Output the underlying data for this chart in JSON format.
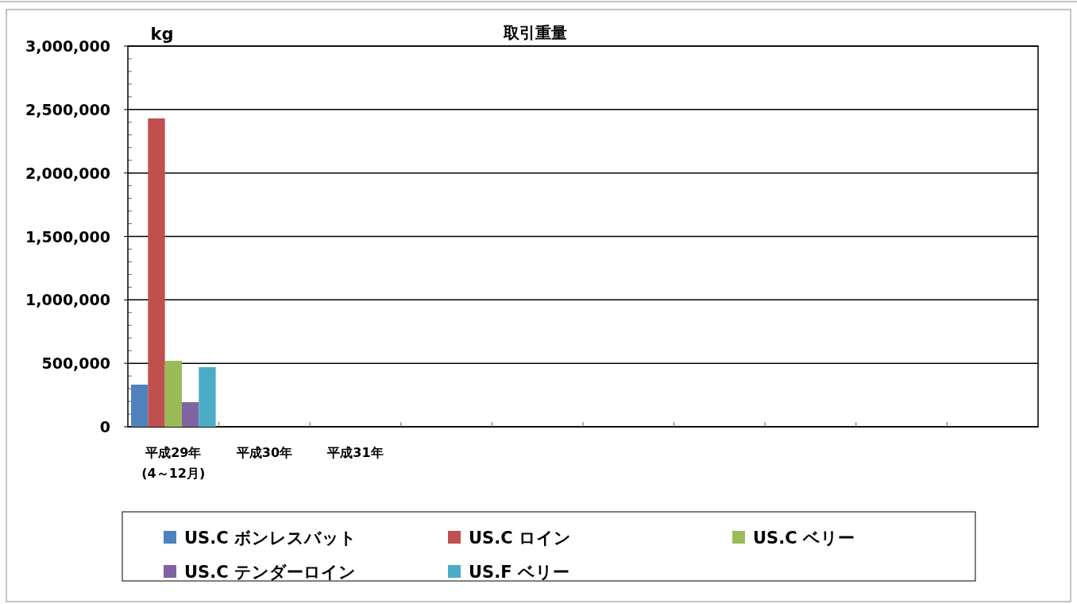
{
  "chart_data": {
    "type": "bar",
    "title": "取引重量",
    "ylabel": "kg",
    "categories": [
      "平成29年\n(4～12月)",
      "平成30年",
      "平成31年",
      null,
      null,
      null,
      null,
      null,
      null,
      null
    ],
    "series": [
      {
        "name": "US.C ボンレスバット",
        "color": "#4f81bd",
        "values": [
          332000,
          null,
          null,
          null,
          null,
          null,
          null,
          null,
          null,
          null
        ]
      },
      {
        "name": "US.C ロイン",
        "color": "#c0504d",
        "values": [
          2430000,
          null,
          null,
          null,
          null,
          null,
          null,
          null,
          null,
          null
        ]
      },
      {
        "name": "US.C ベリー",
        "color": "#9bbb59",
        "values": [
          520000,
          null,
          null,
          null,
          null,
          null,
          null,
          null,
          null,
          null
        ]
      },
      {
        "name": "US.C テンダーロイン",
        "color": "#8064a2",
        "values": [
          194000,
          null,
          null,
          null,
          null,
          null,
          null,
          null,
          null,
          null
        ]
      },
      {
        "name": "US.F ベリー",
        "color": "#4bacc6",
        "values": [
          470000,
          null,
          null,
          null,
          null,
          null,
          null,
          null,
          null,
          null
        ]
      }
    ],
    "ylim": [
      0,
      3000000
    ],
    "yticks": [
      {
        "value": 0,
        "label": "0"
      },
      {
        "value": 500000,
        "label": "500,000"
      },
      {
        "value": 1000000,
        "label": "1,000,000"
      },
      {
        "value": 1500000,
        "label": "1,500,000"
      },
      {
        "value": 2000000,
        "label": "2,000,000"
      },
      {
        "value": 2500000,
        "label": "2,500,000"
      },
      {
        "value": 3000000,
        "label": "3,000,000"
      }
    ],
    "grid": "y",
    "legend": "bottom"
  }
}
